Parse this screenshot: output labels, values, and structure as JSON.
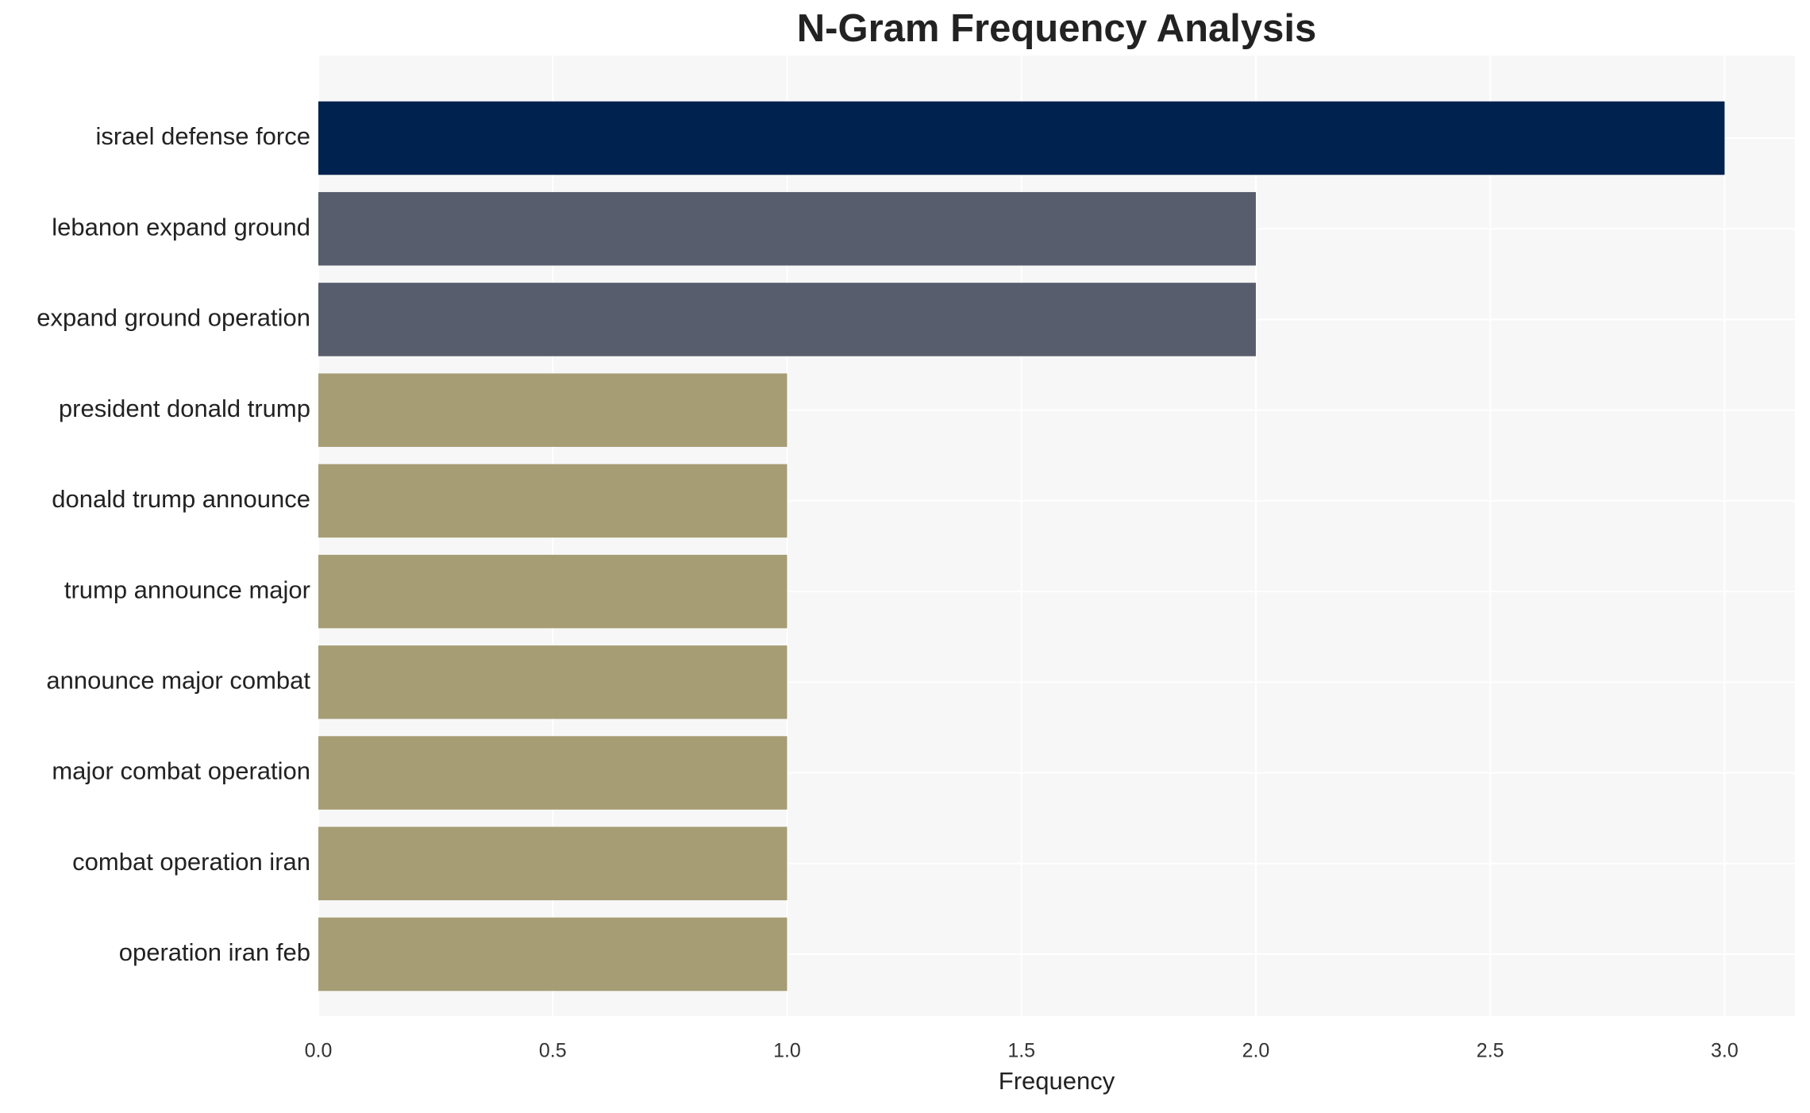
{
  "chart_data": {
    "type": "bar",
    "orientation": "horizontal",
    "title": "N-Gram Frequency Analysis",
    "x_label": "Frequency",
    "categories": [
      "israel defense force",
      "lebanon expand ground",
      "expand ground operation",
      "president donald trump",
      "donald trump announce",
      "trump announce major",
      "announce major combat",
      "major combat operation",
      "combat operation iran",
      "operation iran feb"
    ],
    "values": [
      3,
      2,
      2,
      1,
      1,
      1,
      1,
      1,
      1,
      1
    ],
    "colors": [
      "#00224e",
      "#575d6d",
      "#575d6d",
      "#a69d75",
      "#a69d75",
      "#a69d75",
      "#a69d75",
      "#a69d75",
      "#a69d75",
      "#a69d75"
    ],
    "xlim": [
      0,
      3.15
    ],
    "xticks": [
      {
        "value": 0,
        "label": "0.0"
      },
      {
        "value": 0.5,
        "label": "0.5"
      },
      {
        "value": 1,
        "label": "1.0"
      },
      {
        "value": 1.5,
        "label": "1.5"
      },
      {
        "value": 2,
        "label": "2.0"
      },
      {
        "value": 2.5,
        "label": "2.5"
      },
      {
        "value": 3,
        "label": "3.0"
      }
    ],
    "grid": true
  }
}
